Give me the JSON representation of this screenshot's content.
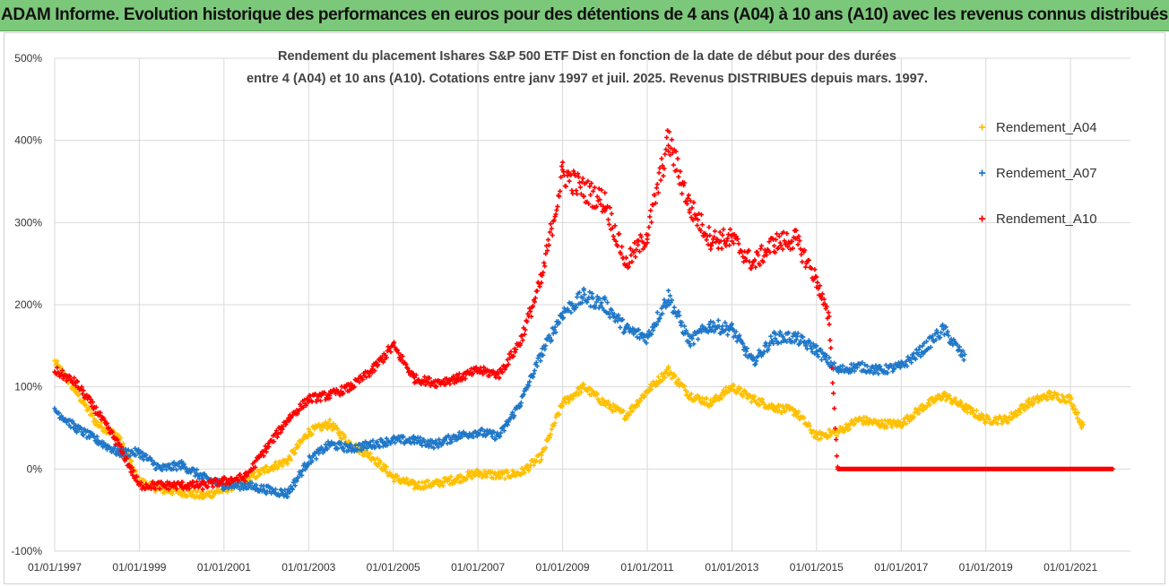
{
  "banner": {
    "title": "ADAM Informe. Evolution historique des performances en euros pour des détentions de 4 ans (A04) à 10 ans (A10) avec les revenus connus distribués"
  },
  "chart_data": {
    "type": "scatter",
    "title_lines": [
      "Rendement du placement Ishares S&P 500 ETF Dist en fonction de la date de début pour des durées",
      "entre 4 (A04) et 10 ans (A10). Cotations entre janv 1997 et juil. 2025. Revenus DISTRIBUES depuis mars. 1997."
    ],
    "xlabel": "",
    "ylabel": "",
    "x_ticks": [
      "01/01/1997",
      "01/01/1999",
      "01/01/2001",
      "01/01/2003",
      "01/01/2005",
      "01/01/2007",
      "01/01/2009",
      "01/01/2011",
      "01/01/2013",
      "01/01/2015",
      "01/01/2017",
      "01/01/2019",
      "01/01/2021"
    ],
    "xlim": [
      "01/01/1997",
      "01/06/2022"
    ],
    "y_ticks": [
      "-100%",
      "0%",
      "100%",
      "200%",
      "300%",
      "400%",
      "500%"
    ],
    "ylim": [
      -100,
      500
    ],
    "grid": true,
    "legend_position": "right",
    "marker": "+",
    "series": [
      {
        "name": "Rendement_A04",
        "color": "#FFC000",
        "points": [
          [
            "1997.0",
            130
          ],
          [
            "1997.5",
            95
          ],
          [
            "1998.0",
            55
          ],
          [
            "1998.5",
            40
          ],
          [
            "1999.0",
            -15
          ],
          [
            "1999.5",
            -25
          ],
          [
            "2000.0",
            -28
          ],
          [
            "2000.5",
            -33
          ],
          [
            "2001.0",
            -25
          ],
          [
            "2001.5",
            -15
          ],
          [
            "2002.0",
            0
          ],
          [
            "2002.5",
            10
          ],
          [
            "2003.0",
            45
          ],
          [
            "2003.5",
            55
          ],
          [
            "2004.0",
            30
          ],
          [
            "2004.5",
            15
          ],
          [
            "2005.0",
            -10
          ],
          [
            "2005.5",
            -20
          ],
          [
            "2006.0",
            -18
          ],
          [
            "2006.5",
            -12
          ],
          [
            "2007.0",
            -5
          ],
          [
            "2007.5",
            -8
          ],
          [
            "2008.0",
            -5
          ],
          [
            "2008.5",
            15
          ],
          [
            "2009.0",
            80
          ],
          [
            "2009.5",
            100
          ],
          [
            "2010.0",
            80
          ],
          [
            "2010.5",
            65
          ],
          [
            "2011.0",
            95
          ],
          [
            "2011.5",
            120
          ],
          [
            "2012.0",
            90
          ],
          [
            "2012.5",
            80
          ],
          [
            "2013.0",
            100
          ],
          [
            "2013.5",
            85
          ],
          [
            "2014.0",
            75
          ],
          [
            "2014.5",
            70
          ],
          [
            "2015.0",
            40
          ],
          [
            "2015.5",
            45
          ],
          [
            "2016.0",
            60
          ],
          [
            "2016.5",
            55
          ],
          [
            "2017.0",
            55
          ],
          [
            "2017.5",
            75
          ],
          [
            "2018.0",
            90
          ],
          [
            "2018.5",
            75
          ],
          [
            "2019.0",
            60
          ],
          [
            "2019.5",
            60
          ],
          [
            "2020.0",
            80
          ],
          [
            "2020.5",
            90
          ],
          [
            "2021.0",
            85
          ],
          [
            "2021.3",
            50
          ]
        ]
      },
      {
        "name": "Rendement_A07",
        "color": "#1F77C8",
        "points": [
          [
            "1997.0",
            72
          ],
          [
            "1997.5",
            50
          ],
          [
            "1998.0",
            35
          ],
          [
            "1998.5",
            20
          ],
          [
            "1999.0",
            20
          ],
          [
            "1999.5",
            0
          ],
          [
            "2000.0",
            5
          ],
          [
            "2000.5",
            -10
          ],
          [
            "2001.0",
            -20
          ],
          [
            "2001.5",
            -20
          ],
          [
            "2002.0",
            -25
          ],
          [
            "2002.5",
            -30
          ],
          [
            "2003.0",
            10
          ],
          [
            "2003.5",
            30
          ],
          [
            "2004.0",
            25
          ],
          [
            "2004.5",
            30
          ],
          [
            "2005.0",
            35
          ],
          [
            "2005.5",
            35
          ],
          [
            "2006.0",
            30
          ],
          [
            "2006.5",
            40
          ],
          [
            "2007.0",
            45
          ],
          [
            "2007.5",
            40
          ],
          [
            "2008.0",
            80
          ],
          [
            "2008.5",
            140
          ],
          [
            "2009.0",
            190
          ],
          [
            "2009.5",
            210
          ],
          [
            "2010.0",
            200
          ],
          [
            "2010.5",
            170
          ],
          [
            "2011.0",
            160
          ],
          [
            "2011.5",
            210
          ],
          [
            "2012.0",
            155
          ],
          [
            "2012.5",
            175
          ],
          [
            "2013.0",
            170
          ],
          [
            "2013.5",
            130
          ],
          [
            "2014.0",
            160
          ],
          [
            "2014.5",
            160
          ],
          [
            "2015.0",
            145
          ],
          [
            "2015.5",
            120
          ],
          [
            "2016.0",
            125
          ],
          [
            "2016.5",
            120
          ],
          [
            "2017.0",
            125
          ],
          [
            "2017.5",
            145
          ],
          [
            "2018.0",
            170
          ],
          [
            "2018.5",
            135
          ]
        ]
      },
      {
        "name": "Rendement_A10",
        "color": "#FF0000",
        "points": [
          [
            "1997.0",
            120
          ],
          [
            "1997.5",
            105
          ],
          [
            "1998.0",
            70
          ],
          [
            "1998.5",
            30
          ],
          [
            "1999.0",
            -20
          ],
          [
            "1999.5",
            -20
          ],
          [
            "2000.0",
            -20
          ],
          [
            "2000.5",
            -20
          ],
          [
            "2001.0",
            -15
          ],
          [
            "2001.5",
            -10
          ],
          [
            "2002.0",
            25
          ],
          [
            "2002.5",
            60
          ],
          [
            "2003.0",
            85
          ],
          [
            "2003.5",
            90
          ],
          [
            "2004.0",
            100
          ],
          [
            "2004.5",
            120
          ],
          [
            "2005.0",
            150
          ],
          [
            "2005.5",
            110
          ],
          [
            "2006.0",
            105
          ],
          [
            "2006.5",
            110
          ],
          [
            "2007.0",
            120
          ],
          [
            "2007.5",
            115
          ],
          [
            "2008.0",
            155
          ],
          [
            "2008.5",
            230
          ],
          [
            "2009.0",
            360
          ],
          [
            "2009.5",
            340
          ],
          [
            "2010.0",
            325
          ],
          [
            "2010.5",
            250
          ],
          [
            "2011.0",
            285
          ],
          [
            "2011.5",
            400
          ],
          [
            "2012.0",
            320
          ],
          [
            "2012.5",
            280
          ],
          [
            "2013.0",
            280
          ],
          [
            "2013.5",
            250
          ],
          [
            "2014.0",
            275
          ],
          [
            "2014.5",
            280
          ],
          [
            "2015.0",
            230
          ],
          [
            "2015.3",
            180
          ],
          [
            "2015.5",
            0
          ],
          [
            "2016.0",
            0
          ],
          [
            "2017.0",
            0
          ],
          [
            "2018.0",
            0
          ],
          [
            "2019.0",
            0
          ],
          [
            "2020.0",
            0
          ],
          [
            "2021.0",
            0
          ],
          [
            "2022.0",
            0
          ]
        ]
      }
    ]
  }
}
